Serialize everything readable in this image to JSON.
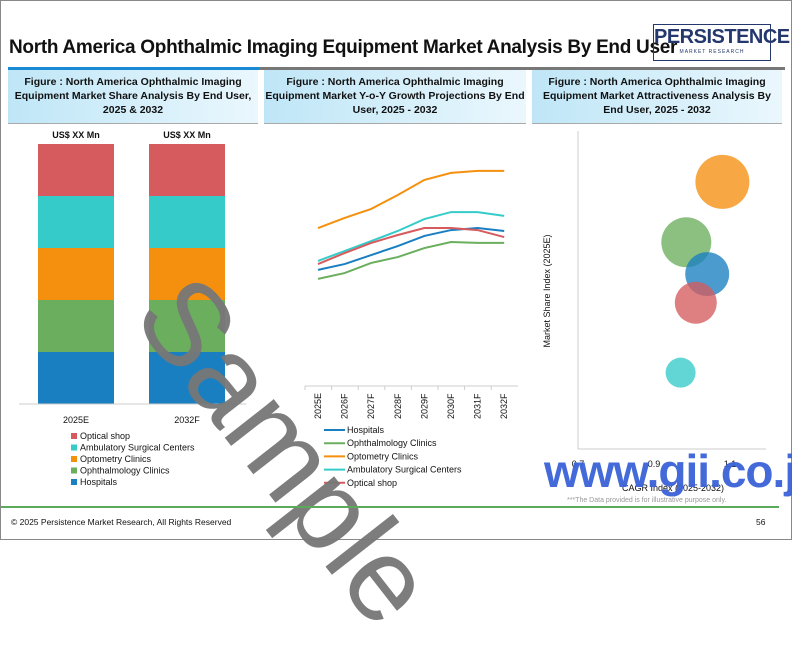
{
  "header": {
    "title": "North America Ophthalmic Imaging Equipment Market Analysis By End User",
    "logo": "PERSISTENCE",
    "logo_sub": "MARKET RESEARCH"
  },
  "panels": [
    {
      "title": "Figure : North America Ophthalmic Imaging Equipment Market Share Analysis By End User, 2025 & 2032"
    },
    {
      "title": "Figure : North America Ophthalmic Imaging Equipment Market Y-o-Y Growth Projections By End User, 2025 - 2032"
    },
    {
      "title": "Figure : North America Ophthalmic Imaging Equipment Market Attractiveness Analysis By End User, 2025 - 2032"
    }
  ],
  "colors": {
    "Hospitals": "#1a7fc1",
    "Ophthalmology Clinics": "#6aae5e",
    "Optometry Clinics": "#f5900f",
    "Ambulatory Surgical Centers": "#35cbc9",
    "Optical shop": "#d55b5e"
  },
  "chart_data": [
    {
      "type": "bar",
      "stacked": true,
      "categories": [
        "2025E",
        "2032F"
      ],
      "top_labels": [
        "US$ XX Mn",
        "US$ XX Mn"
      ],
      "series": [
        {
          "name": "Hospitals",
          "values": [
            20,
            20
          ]
        },
        {
          "name": "Ophthalmology Clinics",
          "values": [
            20,
            20
          ]
        },
        {
          "name": "Optometry Clinics",
          "values": [
            20,
            20
          ]
        },
        {
          "name": "Ambulatory Surgical Centers",
          "values": [
            20,
            20
          ]
        },
        {
          "name": "Optical shop",
          "values": [
            20,
            20
          ]
        }
      ],
      "legend": [
        "Optical shop",
        "Ambulatory Surgical Centers",
        "Optometry Clinics",
        "Ophthalmology Clinics",
        "Hospitals"
      ]
    },
    {
      "type": "line",
      "x": [
        "2025E",
        "2026F",
        "2027F",
        "2028F",
        "2029F",
        "2030F",
        "2031F",
        "2032F"
      ],
      "ylim": [
        0,
        10
      ],
      "series": [
        {
          "name": "Hospitals",
          "values": [
            5.16,
            5.42,
            5.82,
            6.22,
            6.67,
            6.93,
            7.02,
            6.89
          ]
        },
        {
          "name": "Ophthalmology Clinics",
          "values": [
            4.76,
            5.02,
            5.47,
            5.73,
            6.13,
            6.4,
            6.36,
            6.36
          ]
        },
        {
          "name": "Optometry Clinics",
          "values": [
            7.02,
            7.47,
            7.87,
            8.49,
            9.16,
            9.47,
            9.56,
            9.56
          ]
        },
        {
          "name": "Ambulatory Surgical Centers",
          "values": [
            5.56,
            6.0,
            6.44,
            6.89,
            7.42,
            7.73,
            7.73,
            7.56
          ]
        },
        {
          "name": "Optical shop",
          "values": [
            5.42,
            5.91,
            6.36,
            6.71,
            7.02,
            7.02,
            6.93,
            6.62
          ]
        }
      ]
    },
    {
      "type": "scatter",
      "bubble": true,
      "xlabel": "CAGR Index (2025-2032)",
      "ylabel": "Market Share Index (2025E)",
      "xticks": [
        "0.7",
        "0.9",
        "1.1"
      ],
      "xlim": [
        0.7,
        1.12
      ],
      "ylim": [
        0,
        10
      ],
      "points": [
        {
          "name": "Optometry Clinics",
          "x": 1.08,
          "y": 8.4,
          "size": 27
        },
        {
          "name": "Ophthalmology Clinics",
          "x": 0.985,
          "y": 6.5,
          "size": 25
        },
        {
          "name": "Hospitals",
          "x": 1.04,
          "y": 5.5,
          "size": 22
        },
        {
          "name": "Optical shop",
          "x": 1.01,
          "y": 4.6,
          "size": 21
        },
        {
          "name": "Ambulatory Surgical Centers",
          "x": 0.97,
          "y": 2.4,
          "size": 15
        }
      ]
    }
  ],
  "watermarks": {
    "sample": "Sample",
    "site": "www.gii.co.jp"
  },
  "note": "***The Data provided is for illustrative purpose only.",
  "footer": {
    "copyright": "© 2025 Persistence Market Research, All Rights Reserved",
    "page": "56"
  }
}
